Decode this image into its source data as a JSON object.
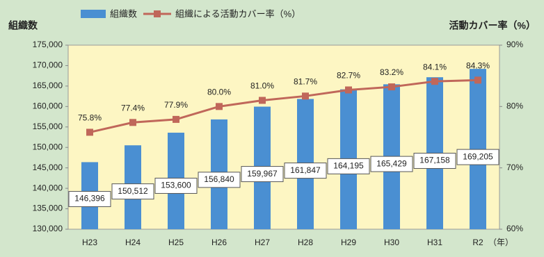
{
  "chart_data": {
    "type": "bar-line",
    "legend": [
      "組織数",
      "組織による活動カバー率（%）"
    ],
    "ylabel": "組織数",
    "y2label": "活動カバー率（%）",
    "xlabel": "（年）",
    "categories": [
      "H23",
      "H24",
      "H25",
      "H26",
      "H27",
      "H28",
      "H29",
      "H30",
      "H31",
      "R2"
    ],
    "series": [
      {
        "name": "組織数",
        "type": "bar",
        "color": "#4a8fd2",
        "values": [
          146396,
          150512,
          153600,
          156840,
          159967,
          161847,
          164195,
          165429,
          167158,
          169205
        ],
        "value_labels": [
          "146,396",
          "150,512",
          "153,600",
          "156,840",
          "159,967",
          "161,847",
          "164,195",
          "165,429",
          "167,158",
          "169,205"
        ]
      },
      {
        "name": "組織による活動カバー率（%）",
        "type": "line",
        "axis": "y2",
        "color": "#c0675a",
        "values": [
          75.8,
          77.4,
          77.9,
          80.0,
          81.0,
          81.7,
          82.7,
          83.2,
          84.1,
          84.3
        ],
        "value_labels": [
          "75.8%",
          "77.4%",
          "77.9%",
          "80.0%",
          "81.0%",
          "81.7%",
          "82.7%",
          "83.2%",
          "84.1%",
          "84.3%"
        ]
      }
    ],
    "ylim": [
      130000,
      175000
    ],
    "yticks": [
      {
        "value": 130000,
        "label": "130,000"
      },
      {
        "value": 135000,
        "label": "135,000"
      },
      {
        "value": 140000,
        "label": "140,000"
      },
      {
        "value": 145000,
        "label": "145,000"
      },
      {
        "value": 150000,
        "label": "150,000"
      },
      {
        "value": 155000,
        "label": "155,000"
      },
      {
        "value": 160000,
        "label": "160,000"
      },
      {
        "value": 165000,
        "label": "165,000"
      },
      {
        "value": 170000,
        "label": "170,000"
      },
      {
        "value": 175000,
        "label": "175,000"
      }
    ],
    "y2lim": [
      60,
      90
    ],
    "y2ticks": [
      {
        "value": 60,
        "label": "60%"
      },
      {
        "value": 70,
        "label": "70%"
      },
      {
        "value": 80,
        "label": "80%"
      },
      {
        "value": 90,
        "label": "90%"
      }
    ]
  }
}
